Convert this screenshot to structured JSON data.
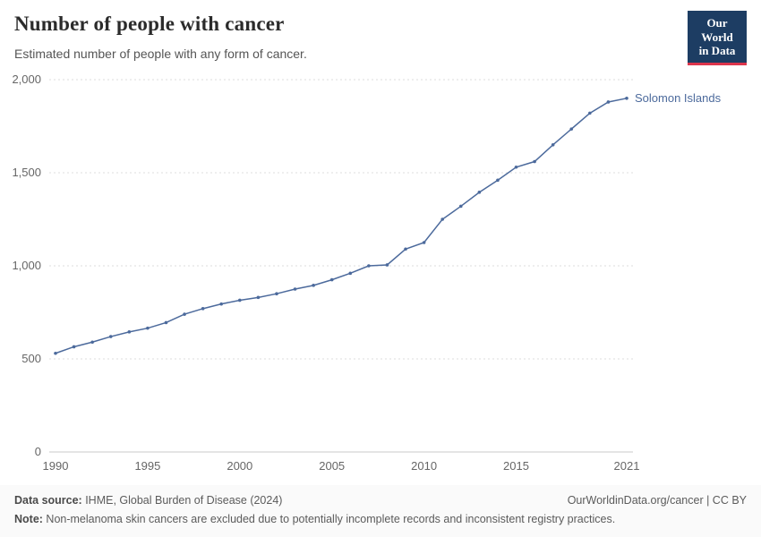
{
  "header": {
    "title": "Number of people with cancer",
    "subtitle": "Estimated number of people with any form of cancer.",
    "logo": {
      "line1": "Our World",
      "line2": "in Data",
      "bg_color": "#1d3d63",
      "accent_color": "#dc354c"
    }
  },
  "chart_data": {
    "type": "line",
    "title": "Number of people with cancer",
    "xlabel": "",
    "ylabel": "",
    "ylim": [
      0,
      2000
    ],
    "yticks": [
      0,
      500,
      1000,
      1500,
      2000
    ],
    "ytick_labels": [
      "0",
      "500",
      "1,000",
      "1,500",
      "2,000"
    ],
    "xticks": [
      1990,
      1995,
      2000,
      2005,
      2010,
      2015,
      2021
    ],
    "xtick_labels": [
      "1990",
      "1995",
      "2000",
      "2005",
      "2010",
      "2015",
      "2021"
    ],
    "grid": "horizontal-dashed",
    "legend_position": "end-of-line-label",
    "x": [
      1990,
      1991,
      1992,
      1993,
      1994,
      1995,
      1996,
      1997,
      1998,
      1999,
      2000,
      2001,
      2002,
      2003,
      2004,
      2005,
      2006,
      2007,
      2008,
      2009,
      2010,
      2011,
      2012,
      2013,
      2014,
      2015,
      2016,
      2017,
      2018,
      2019,
      2020,
      2021
    ],
    "series": [
      {
        "name": "Solomon Islands",
        "color": "#4C6A9C",
        "values": [
          530,
          565,
          590,
          620,
          645,
          665,
          695,
          740,
          770,
          795,
          815,
          830,
          850,
          875,
          895,
          925,
          960,
          1000,
          1005,
          1090,
          1125,
          1250,
          1320,
          1395,
          1460,
          1530,
          1560,
          1650,
          1735,
          1820,
          1880,
          1900
        ]
      }
    ],
    "theme": {
      "grid_color": "#dedede",
      "zero_line_color": "#c8c8c8",
      "axis_text_color": "#666666"
    }
  },
  "footer": {
    "datasource_label": "Data source:",
    "datasource_text": " IHME, Global Burden of Disease (2024)",
    "rights": "OurWorldinData.org/cancer | CC BY",
    "note_label": "Note:",
    "note_text": " Non-melanoma skin cancers are excluded due to potentially incomplete records and inconsistent registry practices."
  }
}
